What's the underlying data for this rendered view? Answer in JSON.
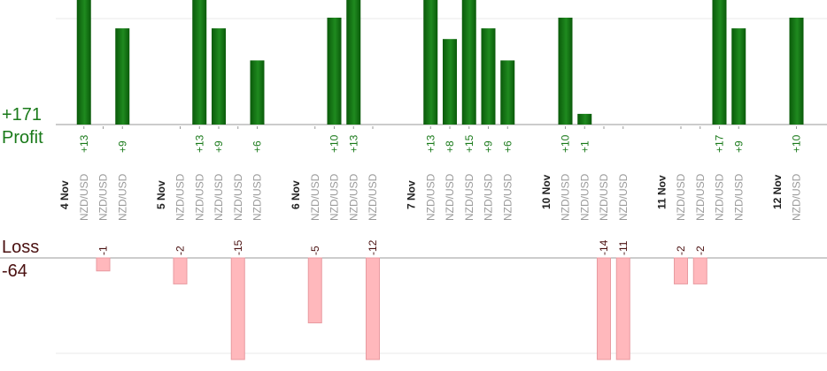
{
  "chart_data": {
    "type": "bar",
    "profit_total": "+171",
    "profit_title": "Profit",
    "loss_title": "Loss",
    "loss_total": "-64",
    "ylim_profit": [
      0,
      10.5
    ],
    "ylim_loss": [
      0,
      8
    ],
    "colors": {
      "profit_dark": "#0a5a0a",
      "profit_light": "#1f8a1f",
      "profit_text": "#1a7a1a",
      "loss_fill": "#ffb8bc",
      "loss_stroke": "#e89aa0",
      "loss_text": "#4a1010",
      "axis": "#9a9a9a",
      "grid": "#e8e8e8"
    },
    "columns": [
      {
        "type": "date",
        "label": "4 Nov"
      },
      {
        "type": "trade",
        "label": "NZD/USD",
        "value": 13,
        "display": "+13"
      },
      {
        "type": "trade",
        "label": "NZD/USD",
        "value": -1,
        "display": "-1"
      },
      {
        "type": "trade",
        "label": "NZD/USD",
        "value": 9,
        "display": "+9"
      },
      {
        "type": "gap"
      },
      {
        "type": "date",
        "label": "5 Nov"
      },
      {
        "type": "trade",
        "label": "NZD/USD",
        "value": -2,
        "display": "-2"
      },
      {
        "type": "trade",
        "label": "NZD/USD",
        "value": 13,
        "display": "+13"
      },
      {
        "type": "trade",
        "label": "NZD/USD",
        "value": 9,
        "display": "+9"
      },
      {
        "type": "trade",
        "label": "NZD/USD",
        "value": -15,
        "display": "-15"
      },
      {
        "type": "trade",
        "label": "NZD/USD",
        "value": 6,
        "display": "+6"
      },
      {
        "type": "gap"
      },
      {
        "type": "date",
        "label": "6 Nov"
      },
      {
        "type": "trade",
        "label": "NZD/USD",
        "value": -5,
        "display": "-5"
      },
      {
        "type": "trade",
        "label": "NZD/USD",
        "value": 10,
        "display": "+10"
      },
      {
        "type": "trade",
        "label": "NZD/USD",
        "value": 13,
        "display": "+13"
      },
      {
        "type": "trade",
        "label": "NZD/USD",
        "value": -12,
        "display": "-12"
      },
      {
        "type": "gap"
      },
      {
        "type": "date",
        "label": "7 Nov"
      },
      {
        "type": "trade",
        "label": "NZD/USD",
        "value": 13,
        "display": "+13"
      },
      {
        "type": "trade",
        "label": "NZD/USD",
        "value": 8,
        "display": "+8"
      },
      {
        "type": "trade",
        "label": "NZD/USD",
        "value": 15,
        "display": "+15"
      },
      {
        "type": "trade",
        "label": "NZD/USD",
        "value": 9,
        "display": "+9"
      },
      {
        "type": "trade",
        "label": "NZD/USD",
        "value": 6,
        "display": "+6"
      },
      {
        "type": "gap"
      },
      {
        "type": "date",
        "label": "10 Nov"
      },
      {
        "type": "trade",
        "label": "NZD/USD",
        "value": 10,
        "display": "+10"
      },
      {
        "type": "trade",
        "label": "NZD/USD",
        "value": 1,
        "display": "+1"
      },
      {
        "type": "trade",
        "label": "NZD/USD",
        "value": -14,
        "display": "-14"
      },
      {
        "type": "trade",
        "label": "NZD/USD",
        "value": -11,
        "display": "-11"
      },
      {
        "type": "gap"
      },
      {
        "type": "date",
        "label": "11 Nov"
      },
      {
        "type": "trade",
        "label": "NZD/USD",
        "value": -2,
        "display": "-2"
      },
      {
        "type": "trade",
        "label": "NZD/USD",
        "value": -2,
        "display": "-2"
      },
      {
        "type": "trade",
        "label": "NZD/USD",
        "value": 17,
        "display": "+17"
      },
      {
        "type": "trade",
        "label": "NZD/USD",
        "value": 9,
        "display": "+9"
      },
      {
        "type": "gap"
      },
      {
        "type": "date",
        "label": "12 Nov"
      },
      {
        "type": "trade",
        "label": "NZD/USD",
        "value": 10,
        "display": "+10"
      }
    ]
  }
}
